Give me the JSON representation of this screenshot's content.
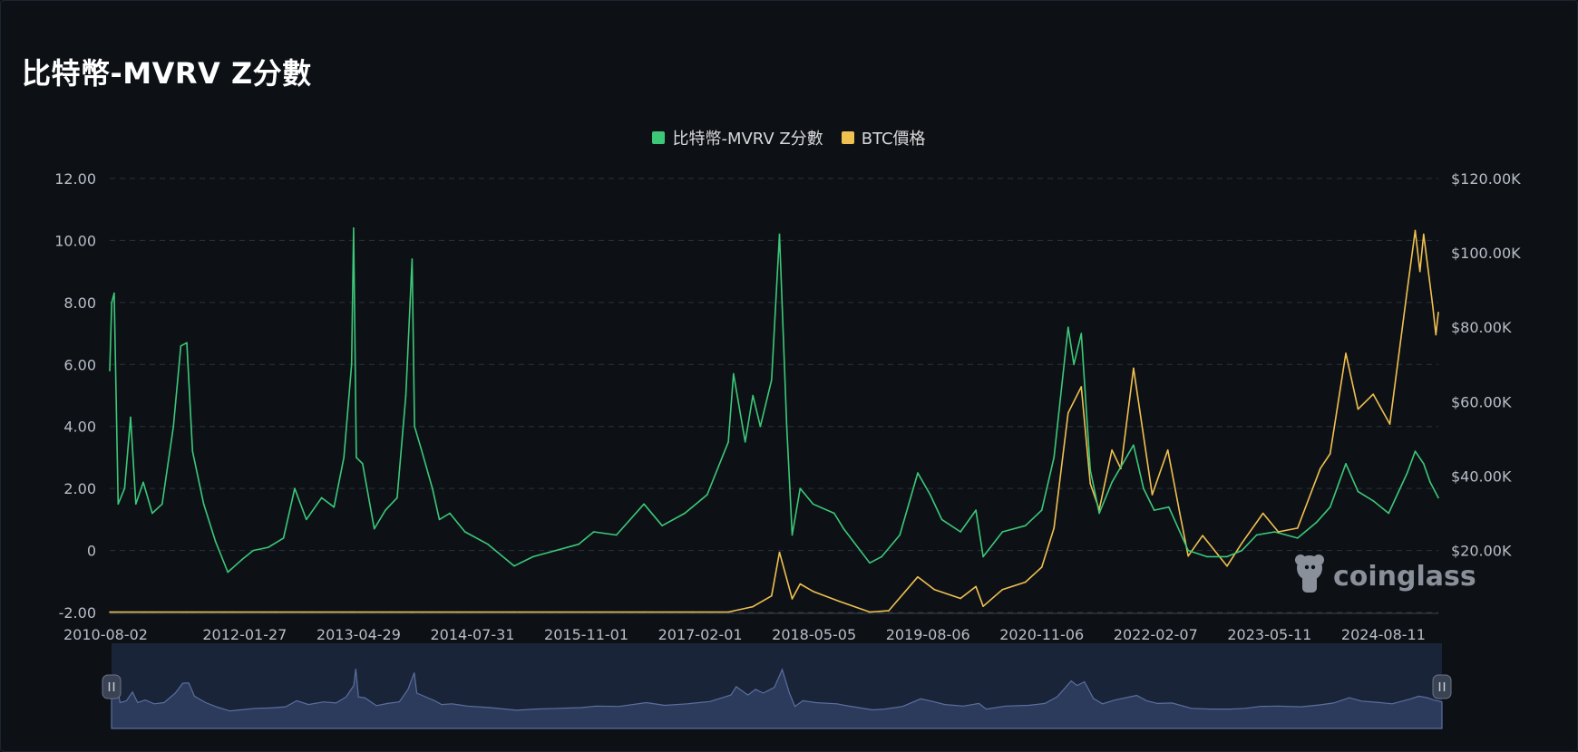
{
  "page": {
    "title": "比特幣-MVRV Z分數",
    "watermark": "coinglass"
  },
  "legend": [
    {
      "label": "比特幣-MVRV Z分數",
      "color": "#3cc878"
    },
    {
      "label": "BTC價格",
      "color": "#f0c050"
    }
  ],
  "colors": {
    "background": "#0d1116",
    "grid": "#2a323c",
    "zscore": "#3cc878",
    "price": "#f0c050",
    "navigator_fill": "#1a2438",
    "navigator_line": "#5a6f9e"
  },
  "chart_data": {
    "type": "line",
    "title": "比特幣-MVRV Z分數",
    "x_tick_labels": [
      "2010-08-02",
      "2012-01-27",
      "2013-04-29",
      "2014-07-31",
      "2015-11-01",
      "2017-02-01",
      "2018-05-05",
      "2019-08-06",
      "2020-11-06",
      "2022-02-07",
      "2023-05-11",
      "2024-08-11"
    ],
    "x_range": [
      "2010-08-02",
      "2025-03-20"
    ],
    "y_left": {
      "min": -2,
      "max": 12,
      "ticks": [
        "-2.00",
        "0",
        "2.00",
        "4.00",
        "6.00",
        "8.00",
        "10.00",
        "12.00"
      ],
      "tick_values": [
        -2,
        0,
        2,
        4,
        6,
        8,
        10,
        12
      ]
    },
    "y_right": {
      "ticks": [
        "$20.00K",
        "$40.00K",
        "$60.00K",
        "$80.00K",
        "$100.00K",
        "$120.00K"
      ],
      "tick_values": [
        20000,
        40000,
        60000,
        80000,
        100000,
        120000
      ]
    },
    "grid": true,
    "legend_position": "top-center",
    "series": [
      {
        "name": "比特幣-MVRV Z分數",
        "axis": "left",
        "points": [
          [
            "2010-08-02",
            5.8
          ],
          [
            "2010-08-10",
            8.0
          ],
          [
            "2010-08-20",
            8.3
          ],
          [
            "2010-09-05",
            1.5
          ],
          [
            "2010-10-01",
            2.0
          ],
          [
            "2010-10-25",
            4.3
          ],
          [
            "2010-11-15",
            1.5
          ],
          [
            "2010-12-15",
            2.2
          ],
          [
            "2011-01-20",
            1.2
          ],
          [
            "2011-03-01",
            1.5
          ],
          [
            "2011-04-15",
            4.0
          ],
          [
            "2011-05-15",
            6.6
          ],
          [
            "2011-06-08",
            6.7
          ],
          [
            "2011-07-01",
            3.2
          ],
          [
            "2011-08-15",
            1.5
          ],
          [
            "2011-10-01",
            0.3
          ],
          [
            "2011-11-20",
            -0.7
          ],
          [
            "2012-01-15",
            -0.3
          ],
          [
            "2012-03-01",
            0.0
          ],
          [
            "2012-05-01",
            0.1
          ],
          [
            "2012-07-01",
            0.4
          ],
          [
            "2012-08-15",
            2.0
          ],
          [
            "2012-10-01",
            1.0
          ],
          [
            "2012-12-01",
            1.7
          ],
          [
            "2013-01-20",
            1.4
          ],
          [
            "2013-03-01",
            3.0
          ],
          [
            "2013-04-01",
            6.0
          ],
          [
            "2013-04-09",
            10.4
          ],
          [
            "2013-04-20",
            3.0
          ],
          [
            "2013-05-15",
            2.8
          ],
          [
            "2013-07-01",
            0.7
          ],
          [
            "2013-08-15",
            1.3
          ],
          [
            "2013-10-01",
            1.7
          ],
          [
            "2013-11-05",
            5.0
          ],
          [
            "2013-11-30",
            9.4
          ],
          [
            "2013-12-10",
            4.0
          ],
          [
            "2014-01-05",
            3.3
          ],
          [
            "2014-02-20",
            2.0
          ],
          [
            "2014-03-20",
            1.0
          ],
          [
            "2014-05-01",
            1.2
          ],
          [
            "2014-07-01",
            0.6
          ],
          [
            "2014-10-01",
            0.2
          ],
          [
            "2015-01-15",
            -0.5
          ],
          [
            "2015-04-01",
            -0.2
          ],
          [
            "2015-07-01",
            0.0
          ],
          [
            "2015-10-01",
            0.2
          ],
          [
            "2015-12-01",
            0.6
          ],
          [
            "2016-03-01",
            0.5
          ],
          [
            "2016-06-20",
            1.5
          ],
          [
            "2016-09-01",
            0.8
          ],
          [
            "2016-12-01",
            1.2
          ],
          [
            "2017-03-01",
            1.8
          ],
          [
            "2017-05-25",
            3.5
          ],
          [
            "2017-06-15",
            5.7
          ],
          [
            "2017-08-01",
            3.5
          ],
          [
            "2017-09-01",
            5.0
          ],
          [
            "2017-10-01",
            4.0
          ],
          [
            "2017-11-15",
            5.5
          ],
          [
            "2017-12-17",
            10.2
          ],
          [
            "2018-01-15",
            4.0
          ],
          [
            "2018-02-06",
            0.5
          ],
          [
            "2018-03-10",
            2.0
          ],
          [
            "2018-05-01",
            1.5
          ],
          [
            "2018-07-25",
            1.2
          ],
          [
            "2018-09-01",
            0.7
          ],
          [
            "2018-12-15",
            -0.4
          ],
          [
            "2019-02-01",
            -0.2
          ],
          [
            "2019-04-15",
            0.5
          ],
          [
            "2019-06-26",
            2.5
          ],
          [
            "2019-08-15",
            1.8
          ],
          [
            "2019-10-01",
            1.0
          ],
          [
            "2019-12-15",
            0.6
          ],
          [
            "2020-02-15",
            1.3
          ],
          [
            "2020-03-15",
            -0.2
          ],
          [
            "2020-06-01",
            0.6
          ],
          [
            "2020-09-01",
            0.8
          ],
          [
            "2020-11-06",
            1.3
          ],
          [
            "2020-12-25",
            3.0
          ],
          [
            "2021-02-20",
            7.2
          ],
          [
            "2021-03-15",
            6.0
          ],
          [
            "2021-04-14",
            7.0
          ],
          [
            "2021-05-20",
            2.6
          ],
          [
            "2021-06-25",
            1.2
          ],
          [
            "2021-08-15",
            2.2
          ],
          [
            "2021-11-10",
            3.4
          ],
          [
            "2021-12-20",
            2.0
          ],
          [
            "2022-02-01",
            1.3
          ],
          [
            "2022-04-01",
            1.4
          ],
          [
            "2022-06-18",
            0.0
          ],
          [
            "2022-09-01",
            -0.2
          ],
          [
            "2022-11-21",
            -0.2
          ],
          [
            "2023-01-20",
            0.0
          ],
          [
            "2023-03-20",
            0.5
          ],
          [
            "2023-06-01",
            0.6
          ],
          [
            "2023-09-01",
            0.4
          ],
          [
            "2023-11-15",
            0.9
          ],
          [
            "2024-01-10",
            1.4
          ],
          [
            "2024-03-13",
            2.8
          ],
          [
            "2024-05-01",
            1.9
          ],
          [
            "2024-07-01",
            1.6
          ],
          [
            "2024-09-01",
            1.2
          ],
          [
            "2024-11-15",
            2.5
          ],
          [
            "2024-12-17",
            3.2
          ],
          [
            "2025-01-20",
            2.8
          ],
          [
            "2025-02-15",
            2.2
          ],
          [
            "2025-03-20",
            1.7
          ]
        ]
      },
      {
        "name": "BTC價格",
        "axis": "right",
        "points": [
          [
            "2010-08-02",
            0.07
          ],
          [
            "2011-06-08",
            30
          ],
          [
            "2012-06-01",
            6
          ],
          [
            "2013-04-09",
            230
          ],
          [
            "2013-11-30",
            1150
          ],
          [
            "2014-06-01",
            600
          ],
          [
            "2015-01-15",
            200
          ],
          [
            "2016-06-20",
            700
          ],
          [
            "2017-01-01",
            1000
          ],
          [
            "2017-05-25",
            2500
          ],
          [
            "2017-09-01",
            4900
          ],
          [
            "2017-11-15",
            7800
          ],
          [
            "2017-12-17",
            19500
          ],
          [
            "2018-02-06",
            7000
          ],
          [
            "2018-03-10",
            11000
          ],
          [
            "2018-05-01",
            9000
          ],
          [
            "2018-08-15",
            6300
          ],
          [
            "2018-12-15",
            3200
          ],
          [
            "2019-03-01",
            3800
          ],
          [
            "2019-06-26",
            12900
          ],
          [
            "2019-09-01",
            9500
          ],
          [
            "2019-12-15",
            7100
          ],
          [
            "2020-02-15",
            10300
          ],
          [
            "2020-03-15",
            5000
          ],
          [
            "2020-06-01",
            9500
          ],
          [
            "2020-09-01",
            11500
          ],
          [
            "2020-11-06",
            15500
          ],
          [
            "2020-12-25",
            26000
          ],
          [
            "2021-02-20",
            57000
          ],
          [
            "2021-04-14",
            64000
          ],
          [
            "2021-05-20",
            38000
          ],
          [
            "2021-06-25",
            31000
          ],
          [
            "2021-08-15",
            47000
          ],
          [
            "2021-09-20",
            42000
          ],
          [
            "2021-11-10",
            69000
          ],
          [
            "2022-01-24",
            35000
          ],
          [
            "2022-03-28",
            47000
          ],
          [
            "2022-05-15",
            30000
          ],
          [
            "2022-06-18",
            18500
          ],
          [
            "2022-08-15",
            24000
          ],
          [
            "2022-11-21",
            15800
          ],
          [
            "2023-01-20",
            22000
          ],
          [
            "2023-04-15",
            30000
          ],
          [
            "2023-06-15",
            25000
          ],
          [
            "2023-09-01",
            26000
          ],
          [
            "2023-12-01",
            42000
          ],
          [
            "2024-01-10",
            46000
          ],
          [
            "2024-03-13",
            73000
          ],
          [
            "2024-05-01",
            58000
          ],
          [
            "2024-07-01",
            62000
          ],
          [
            "2024-09-06",
            54000
          ],
          [
            "2024-11-15",
            90000
          ],
          [
            "2024-12-17",
            106000
          ],
          [
            "2025-01-05",
            95000
          ],
          [
            "2025-01-20",
            105000
          ],
          [
            "2025-02-25",
            86000
          ],
          [
            "2025-03-10",
            78000
          ],
          [
            "2025-03-20",
            84000
          ]
        ]
      }
    ]
  }
}
